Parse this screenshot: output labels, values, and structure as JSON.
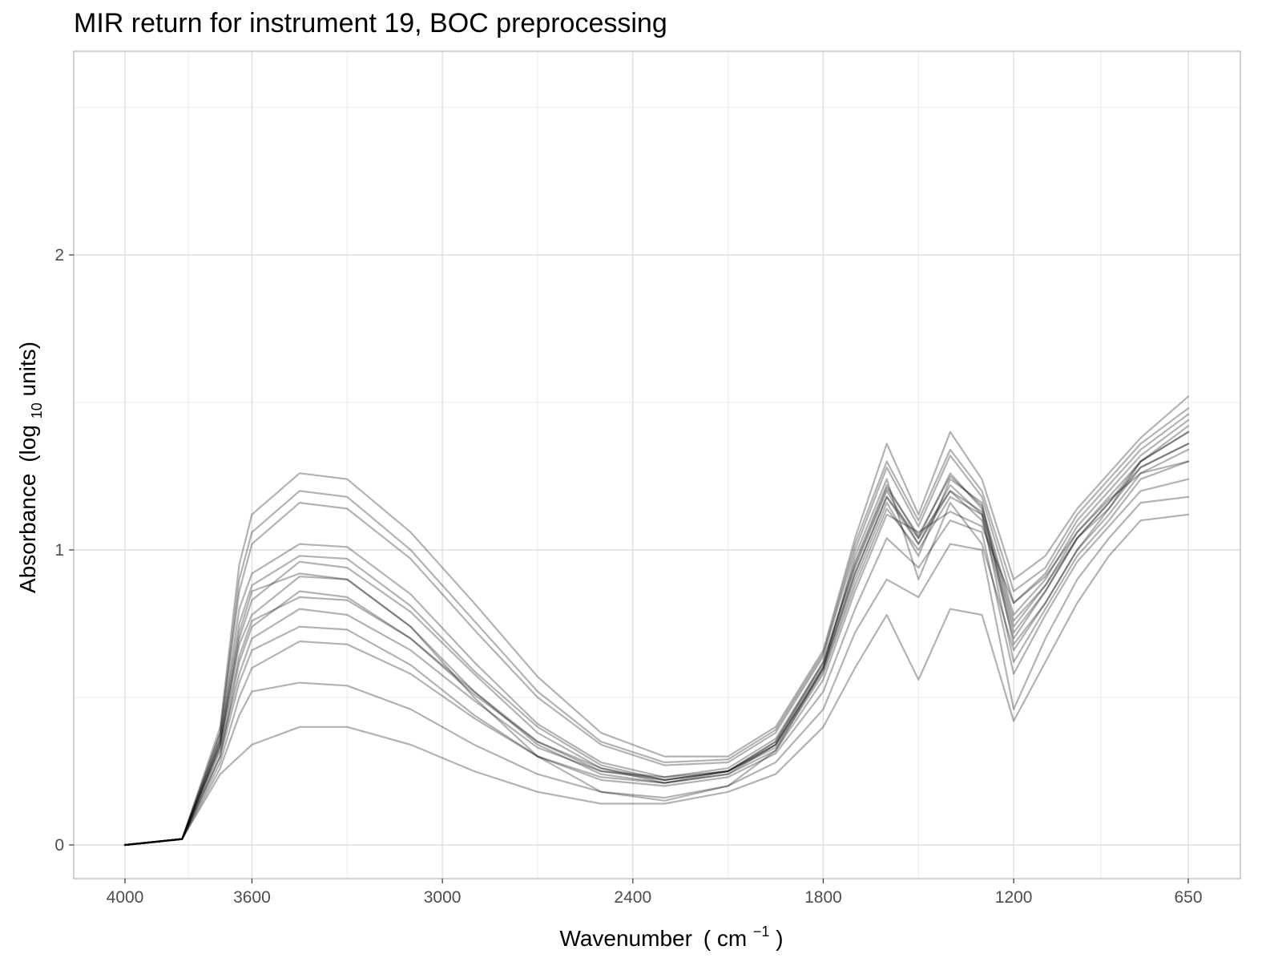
{
  "chart_data": {
    "type": "line",
    "title": "MIR return for instrument 19, BOC preprocessing",
    "xlabel": {
      "main": "Wavenumber",
      "open": "(",
      "unit": "cm",
      "superscript": "−1",
      "close": ")"
    },
    "ylabel": {
      "main": "Absorbance",
      "open": "(log",
      "subscript": "10",
      "close": " units)"
    },
    "x_reversed": true,
    "xlim": [
      4000,
      650
    ],
    "ylim": [
      0,
      2.6
    ],
    "x_ticks": [
      {
        "value": 4000,
        "label": "4000"
      },
      {
        "value": 3600,
        "label": "3600"
      },
      {
        "value": 3000,
        "label": "3000"
      },
      {
        "value": 2400,
        "label": "2400"
      },
      {
        "value": 1800,
        "label": "1800"
      },
      {
        "value": 1200,
        "label": "1200"
      },
      {
        "value": 650,
        "label": "650"
      }
    ],
    "y_ticks": [
      {
        "value": 0,
        "label": "0"
      },
      {
        "value": 1,
        "label": "1"
      },
      {
        "value": 2,
        "label": "2"
      }
    ],
    "grid": true,
    "line_color": "#000000",
    "panel_border_color": "#b3b3b3",
    "grid_color": "#ebebeb",
    "series": [
      {
        "x": [
          4000,
          3820,
          3700,
          3640,
          3600,
          3450,
          3300,
          3100,
          2900,
          2700,
          2500,
          2300,
          2100,
          1950,
          1800,
          1700,
          1600,
          1500,
          1400,
          1300,
          1200,
          1100,
          1000,
          900,
          800,
          650
        ],
        "y": [
          0,
          0.02,
          0.3,
          0.55,
          0.66,
          0.74,
          0.73,
          0.61,
          0.44,
          0.3,
          0.23,
          0.21,
          0.24,
          0.32,
          0.56,
          0.86,
          1.12,
          1.06,
          1.13,
          1.08,
          0.82,
          0.91,
          1.06,
          1.17,
          1.26,
          1.3
        ]
      },
      {
        "x": [
          4000,
          3820,
          3700,
          3640,
          3600,
          3450,
          3300,
          3100,
          2900,
          2700,
          2500,
          2300,
          2100,
          1950,
          1800,
          1700,
          1600,
          1500,
          1400,
          1300,
          1200,
          1100,
          1000,
          900,
          800,
          650
        ],
        "y": [
          0,
          0.02,
          0.34,
          0.68,
          0.78,
          0.91,
          0.9,
          0.74,
          0.52,
          0.34,
          0.24,
          0.21,
          0.24,
          0.34,
          0.6,
          0.92,
          1.18,
          1.02,
          1.2,
          1.1,
          0.7,
          0.86,
          1.04,
          1.14,
          1.28,
          1.36
        ]
      },
      {
        "x": [
          4000,
          3820,
          3700,
          3640,
          3600,
          3450,
          3300,
          3100,
          2900,
          2700,
          2500,
          2300,
          2100,
          1950,
          1800,
          1700,
          1600,
          1500,
          1400,
          1300,
          1200,
          1100,
          1000,
          900,
          800,
          650
        ],
        "y": [
          0,
          0.02,
          0.36,
          0.8,
          0.92,
          1.02,
          1.01,
          0.85,
          0.62,
          0.41,
          0.28,
          0.23,
          0.26,
          0.36,
          0.62,
          0.96,
          1.22,
          1.04,
          1.26,
          1.14,
          0.76,
          0.88,
          1.06,
          1.18,
          1.3,
          1.4
        ]
      },
      {
        "x": [
          4000,
          3820,
          3700,
          3640,
          3600,
          3450,
          3300,
          3100,
          2900,
          2700,
          2500,
          2300,
          2100,
          1950,
          1800,
          1700,
          1600,
          1500,
          1400,
          1300,
          1200,
          1100,
          1000,
          900,
          800,
          650
        ],
        "y": [
          0,
          0.02,
          0.38,
          0.86,
          1.02,
          1.16,
          1.14,
          0.97,
          0.73,
          0.5,
          0.34,
          0.27,
          0.28,
          0.38,
          0.64,
          1.0,
          1.28,
          1.08,
          1.32,
          1.18,
          0.82,
          0.92,
          1.1,
          1.22,
          1.34,
          1.46
        ]
      },
      {
        "x": [
          4000,
          3820,
          3700,
          3640,
          3600,
          3450,
          3300,
          3100,
          2900,
          2700,
          2500,
          2300,
          2100,
          1950,
          1800,
          1700,
          1600,
          1500,
          1400,
          1300,
          1200,
          1100,
          1000,
          900,
          800,
          650
        ],
        "y": [
          0,
          0.02,
          0.4,
          0.95,
          1.12,
          1.26,
          1.24,
          1.06,
          0.82,
          0.57,
          0.38,
          0.3,
          0.3,
          0.4,
          0.66,
          1.04,
          1.36,
          1.12,
          1.4,
          1.24,
          0.9,
          0.98,
          1.14,
          1.26,
          1.38,
          1.52
        ]
      },
      {
        "x": [
          4000,
          3820,
          3700,
          3640,
          3600,
          3450,
          3300,
          3100,
          2900,
          2700,
          2500,
          2300,
          2100,
          1950,
          1800,
          1700,
          1600,
          1500,
          1400,
          1300,
          1200,
          1100,
          1000,
          900,
          800,
          650
        ],
        "y": [
          0,
          0.02,
          0.32,
          0.58,
          0.7,
          0.8,
          0.78,
          0.66,
          0.49,
          0.33,
          0.25,
          0.23,
          0.25,
          0.33,
          0.58,
          0.88,
          1.14,
          1.0,
          1.18,
          1.12,
          0.62,
          0.8,
          0.98,
          1.1,
          1.24,
          1.3
        ]
      },
      {
        "x": [
          4000,
          3820,
          3700,
          3640,
          3600,
          3450,
          3300,
          3100,
          2900,
          2700,
          2500,
          2300,
          2100,
          1950,
          1800,
          1700,
          1600,
          1500,
          1400,
          1300,
          1200,
          1100,
          1000,
          900,
          800,
          650
        ],
        "y": [
          0,
          0.02,
          0.3,
          0.62,
          0.74,
          0.86,
          0.84,
          0.7,
          0.51,
          0.35,
          0.26,
          0.22,
          0.25,
          0.34,
          0.59,
          0.9,
          1.16,
          0.98,
          1.24,
          1.16,
          0.68,
          0.82,
          1.0,
          1.12,
          1.26,
          1.34
        ]
      },
      {
        "x": [
          4000,
          3820,
          3700,
          3640,
          3600,
          3450,
          3300,
          3100,
          2900,
          2700,
          2500,
          2300,
          2100,
          1950,
          1800,
          1700,
          1600,
          1500,
          1400,
          1300,
          1200,
          1100,
          1000,
          900,
          800,
          650
        ],
        "y": [
          0,
          0.02,
          0.28,
          0.5,
          0.6,
          0.69,
          0.68,
          0.58,
          0.43,
          0.3,
          0.22,
          0.2,
          0.23,
          0.31,
          0.52,
          0.8,
          1.04,
          0.94,
          1.1,
          1.06,
          0.58,
          0.78,
          0.96,
          1.08,
          1.2,
          1.24
        ]
      },
      {
        "x": [
          4000,
          3820,
          3700,
          3640,
          3600,
          3450,
          3300,
          3100,
          2900,
          2700,
          2500,
          2300,
          2100,
          1950,
          1800,
          1700,
          1600,
          1500,
          1400,
          1300,
          1200,
          1100,
          1000,
          900,
          800,
          650
        ],
        "y": [
          0,
          0.02,
          0.26,
          0.44,
          0.52,
          0.55,
          0.54,
          0.46,
          0.34,
          0.24,
          0.18,
          0.16,
          0.2,
          0.28,
          0.46,
          0.72,
          0.9,
          0.84,
          1.02,
          1.0,
          0.46,
          0.7,
          0.9,
          1.04,
          1.16,
          1.18
        ]
      },
      {
        "x": [
          4000,
          3820,
          3700,
          3640,
          3600,
          3450,
          3300,
          3100,
          2900,
          2700,
          2500,
          2300,
          2100,
          1950,
          1800,
          1700,
          1600,
          1500,
          1400,
          1300,
          1200,
          1100,
          1000,
          900,
          800,
          650
        ],
        "y": [
          0,
          0.02,
          0.24,
          0.3,
          0.34,
          0.4,
          0.4,
          0.34,
          0.25,
          0.18,
          0.14,
          0.14,
          0.18,
          0.24,
          0.4,
          0.6,
          0.78,
          0.56,
          0.8,
          0.78,
          0.42,
          0.62,
          0.82,
          0.98,
          1.1,
          1.12
        ]
      },
      {
        "x": [
          4000,
          3820,
          3700,
          3640,
          3600,
          3450,
          3300,
          3100,
          2900,
          2700,
          2500,
          2300,
          2100,
          1950,
          1800,
          1700,
          1600,
          1500,
          1400,
          1300,
          1200,
          1100,
          1000,
          900,
          800,
          650
        ],
        "y": [
          0,
          0.02,
          0.34,
          0.7,
          0.83,
          0.96,
          0.94,
          0.79,
          0.58,
          0.38,
          0.26,
          0.21,
          0.25,
          0.35,
          0.61,
          0.94,
          1.2,
          1.02,
          1.22,
          1.12,
          0.72,
          0.86,
          1.04,
          1.16,
          1.3,
          1.42
        ]
      },
      {
        "x": [
          4000,
          3820,
          3700,
          3640,
          3600,
          3450,
          3300,
          3100,
          2900,
          2700,
          2500,
          2300,
          2100,
          1950,
          1800,
          1700,
          1600,
          1500,
          1400,
          1300,
          1200,
          1100,
          1000,
          900,
          800,
          650
        ],
        "y": [
          0,
          0.02,
          0.36,
          0.75,
          0.88,
          0.98,
          0.97,
          0.81,
          0.59,
          0.4,
          0.27,
          0.22,
          0.25,
          0.35,
          0.62,
          0.95,
          1.21,
          1.05,
          1.25,
          1.15,
          0.78,
          0.9,
          1.08,
          1.2,
          1.32,
          1.44
        ]
      },
      {
        "x": [
          4000,
          3820,
          3700,
          3640,
          3600,
          3450,
          3300,
          3100,
          2900,
          2700,
          2500,
          2300,
          2100,
          1950,
          1800,
          1700,
          1600,
          1500,
          1400,
          1300,
          1200,
          1100,
          1000,
          900,
          800,
          650
        ],
        "y": [
          0,
          0.02,
          0.33,
          0.64,
          0.76,
          0.84,
          0.83,
          0.7,
          0.52,
          0.35,
          0.25,
          0.22,
          0.25,
          0.34,
          0.6,
          0.92,
          1.18,
          1.04,
          1.2,
          1.13,
          0.74,
          0.88,
          1.04,
          1.16,
          1.28,
          1.36
        ]
      },
      {
        "x": [
          4000,
          3820,
          3700,
          3640,
          3600,
          3450,
          3300,
          3100,
          2900,
          2700,
          2500,
          2300,
          2100,
          1950,
          1800,
          1700,
          1600,
          1500,
          1400,
          1300,
          1200,
          1100,
          1000,
          900,
          800,
          650
        ],
        "y": [
          0,
          0.02,
          0.38,
          0.9,
          1.06,
          1.2,
          1.18,
          1.0,
          0.76,
          0.52,
          0.35,
          0.28,
          0.29,
          0.39,
          0.65,
          1.02,
          1.3,
          1.1,
          1.34,
          1.2,
          0.86,
          0.94,
          1.12,
          1.24,
          1.36,
          1.48
        ]
      },
      {
        "x": [
          4000,
          3820,
          3700,
          3640,
          3600,
          3450,
          3300,
          3100,
          2900,
          2700,
          2500,
          2300,
          2100,
          1950,
          1800,
          1700,
          1600,
          1500,
          1400,
          1300,
          1200,
          1100,
          1000,
          900,
          800,
          650
        ],
        "y": [
          0,
          0.02,
          0.35,
          0.72,
          0.86,
          0.92,
          0.9,
          0.74,
          0.5,
          0.3,
          0.18,
          0.15,
          0.2,
          0.32,
          0.6,
          0.98,
          1.24,
          0.9,
          1.16,
          1.02,
          0.66,
          0.82,
          1.0,
          1.14,
          1.3,
          1.4
        ]
      }
    ]
  }
}
